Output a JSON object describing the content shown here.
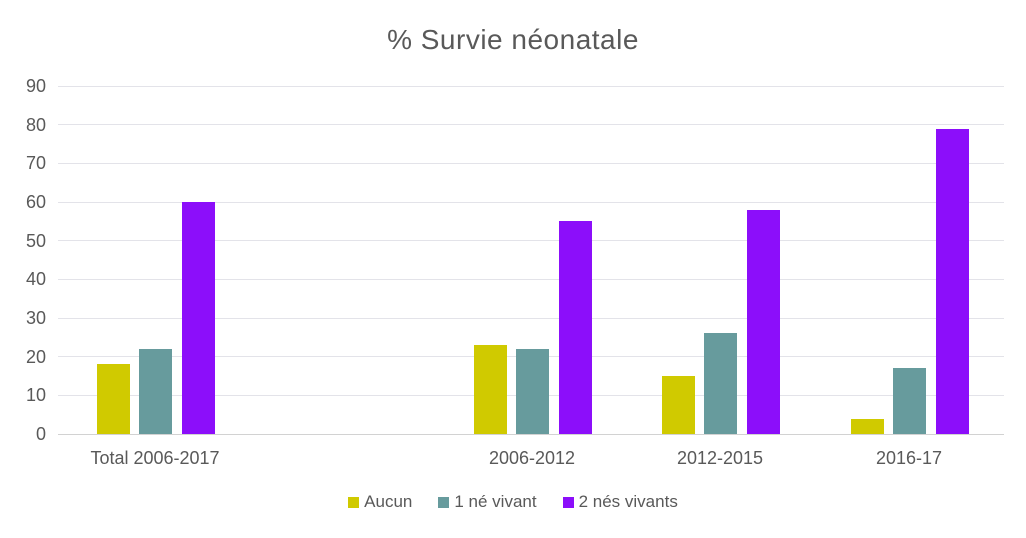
{
  "chart_data": {
    "type": "bar",
    "title": "% Survie néonatale",
    "categories": [
      "Total 2006-2017",
      "2006-2012",
      "2012-2015",
      "2016-17"
    ],
    "series": [
      {
        "name": "Aucun",
        "color": "#d0ca00",
        "values": [
          18,
          23,
          15,
          4
        ]
      },
      {
        "name": "1 né vivant",
        "color": "#679b9d",
        "values": [
          22,
          22,
          26,
          17
        ]
      },
      {
        "name": "2 nés vivants",
        "color": "#8c0efa",
        "values": [
          60,
          55,
          58,
          79
        ]
      }
    ],
    "xlabel": "",
    "ylabel": "",
    "ylim": [
      0,
      90
    ],
    "yticks": [
      0,
      10,
      20,
      30,
      40,
      50,
      60,
      70,
      80,
      90
    ],
    "grid": true,
    "legend_position": "bottom",
    "colors": {
      "title_text": "#595959",
      "axis_text": "#595959",
      "gridline": "#e3e3e9",
      "baseline": "#d2d2d2",
      "background": "#ffffff"
    }
  }
}
